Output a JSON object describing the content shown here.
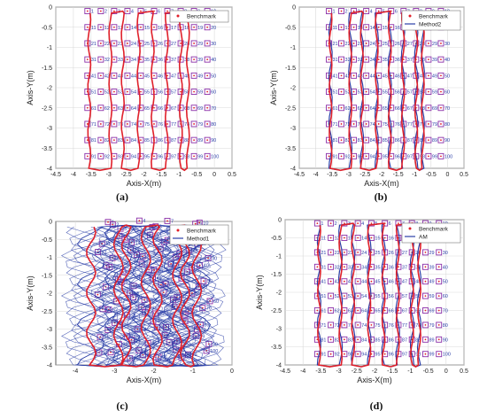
{
  "chart_data": [
    {
      "type": "line",
      "panel_label": "(a)",
      "xlabel": "Axis-X(m)",
      "ylabel": "Axis-Y(m)",
      "xlim": [
        -4.5,
        0.5
      ],
      "ylim": [
        -4,
        0
      ],
      "x_ticks": [
        "-4.5",
        "-4",
        "-3.5",
        "-3",
        "-2.5",
        "-2",
        "-1.5",
        "-1",
        "-0.5",
        "0",
        "0.5"
      ],
      "y_ticks": [
        "0",
        "-0.5",
        "-1",
        "-1.5",
        "-2",
        "-2.5",
        "-3",
        "-3.5",
        "-4"
      ],
      "grid": true,
      "legend_position": "top-right",
      "series": [
        {
          "name": "Benchmark",
          "style": "markers",
          "grid_points": {
            "columns": 10,
            "rows": 10,
            "x_start": -3.5,
            "x_step": 0.36,
            "y_start": -0.1,
            "y_step": -0.4
          }
        }
      ],
      "trajectory_series": [
        {
          "name": "Benchmark",
          "color": "#e0202a",
          "lane_x_min": [
            -3.55,
            -2.6,
            -1.75,
            -0.95
          ],
          "lane_x_max": [
            -2.9,
            -2.1,
            -1.35,
            -0.75
          ],
          "y_bottom": -4.0,
          "y_top": -0.1
        }
      ],
      "point_labels": [
        "1",
        "2",
        "3",
        "4",
        "5",
        "6",
        "7",
        "8",
        "9",
        "10"
      ]
    },
    {
      "type": "line",
      "panel_label": "(b)",
      "xlabel": "Axis-X(m)",
      "ylabel": "Axis-Y(m)",
      "xlim": [
        -4.5,
        0.5
      ],
      "ylim": [
        -4,
        0
      ],
      "x_ticks": [
        "-4.5",
        "-4",
        "-3.5",
        "-3",
        "-2.5",
        "-2",
        "-1.5",
        "-1",
        "-0.5",
        "0",
        "0.5"
      ],
      "y_ticks": [
        "0",
        "-0.5",
        "-1",
        "-1.5",
        "-2",
        "-2.5",
        "-3",
        "-3.5",
        "-4"
      ],
      "grid": true,
      "legend_position": "top-right",
      "series": [
        {
          "name": "Benchmark",
          "style": "markers"
        },
        {
          "name": "Method2",
          "style": "line"
        }
      ],
      "trajectory_series": [
        {
          "name": "Benchmark",
          "color": "#e0202a"
        },
        {
          "name": "Method2",
          "color": "#2b3fa8"
        }
      ]
    },
    {
      "type": "line",
      "panel_label": "(c)",
      "xlabel": "Axis-X(m)",
      "ylabel": "Axis-Y(m)",
      "xlim": [
        -4.5,
        0
      ],
      "ylim": [
        -4,
        0
      ],
      "x_ticks": [
        "-4",
        "-3",
        "-2",
        "-1",
        "0"
      ],
      "y_ticks": [
        "0",
        "-0.5",
        "-1",
        "-1.5",
        "-2",
        "-2.5",
        "-3",
        "-3.5",
        "-4"
      ],
      "grid": true,
      "legend_position": "top-right",
      "series": [
        {
          "name": "Benchmark",
          "style": "markers"
        },
        {
          "name": "Method1",
          "style": "line"
        }
      ],
      "trajectory_series": [
        {
          "name": "Benchmark",
          "color": "#e0202a"
        },
        {
          "name": "Method1",
          "color": "#2b3fa8"
        }
      ]
    },
    {
      "type": "line",
      "panel_label": "(d)",
      "xlabel": "Axis-X(m)",
      "ylabel": "Axis-Y(m)",
      "xlim": [
        -4.5,
        0.5
      ],
      "ylim": [
        -4,
        0
      ],
      "x_ticks": [
        "-4.5",
        "-4",
        "-3.5",
        "-3",
        "-2.5",
        "-2",
        "-1.5",
        "-1",
        "-0.5",
        "0",
        "0.5"
      ],
      "y_ticks": [
        "0",
        "-0.5",
        "-1",
        "-1.5",
        "-2",
        "-2.5",
        "-3",
        "-3.5",
        "-4"
      ],
      "grid": true,
      "legend_position": "top-right",
      "series": [
        {
          "name": "Benchmark",
          "style": "markers"
        },
        {
          "name": "AM",
          "style": "line"
        }
      ],
      "trajectory_series": [
        {
          "name": "Benchmark",
          "color": "#e0202a"
        },
        {
          "name": "AM",
          "color": "#2b3fa8"
        }
      ]
    }
  ],
  "colors": {
    "benchmark": "#e0202a",
    "estimate": "#2b3fa8",
    "marker_box": "#8b2fa8",
    "point_label": "#2b3fa8",
    "grid": "#d9d9d9",
    "axis": "#333333"
  }
}
